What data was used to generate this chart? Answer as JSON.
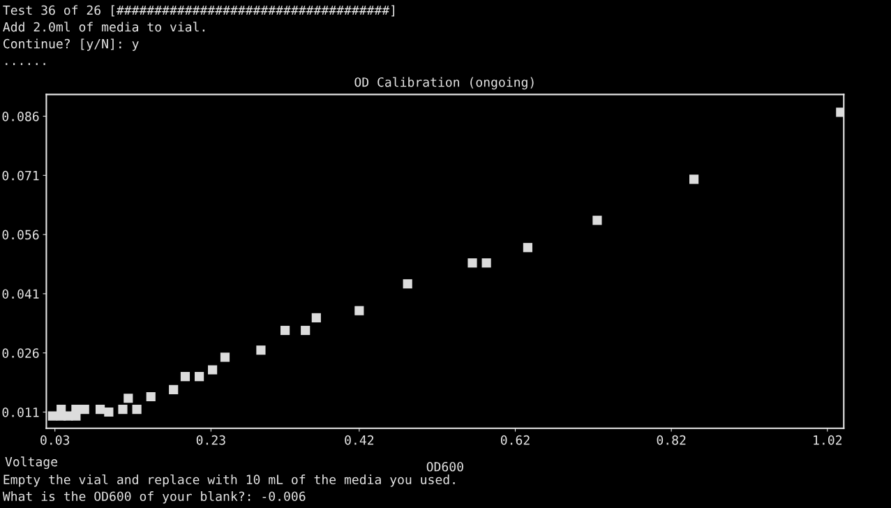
{
  "chart_data": {
    "type": "scatter",
    "title": "OD Calibration (ongoing)",
    "xlabel": "OD600",
    "ylabel": "Voltage",
    "annotations": [
      "Test 36 of 26 [####################################]",
      "Add 2.0ml of media to vial.",
      "Continue? [y/N]: y",
      "......",
      "Empty the vial and replace with 10 mL of the media you used.",
      "What is the OD600 of your blank?: -0.006"
    ],
    "series": [
      {
        "color": "#dcdcdc",
        "x": [
          0.027,
          0.038,
          0.038,
          0.047,
          0.057,
          0.057,
          0.068,
          0.088,
          0.099,
          0.117,
          0.124,
          0.135,
          0.153,
          0.182,
          0.197,
          0.215,
          0.232,
          0.248,
          0.294,
          0.325,
          0.351,
          0.365,
          0.42,
          0.482,
          0.565,
          0.583,
          0.636,
          0.725,
          0.849,
          1.037
        ],
        "values": [
          0.01,
          0.0117,
          0.01,
          0.01,
          0.0117,
          0.01,
          0.0117,
          0.0117,
          0.011,
          0.0117,
          0.0145,
          0.0117,
          0.0149,
          0.0167,
          0.02,
          0.02,
          0.0217,
          0.0249,
          0.0267,
          0.0317,
          0.0317,
          0.0349,
          0.0367,
          0.0435,
          0.0488,
          0.0488,
          0.0527,
          0.0596,
          0.07,
          0.087
        ]
      }
    ],
    "xlim": [
      0.019,
      1.041
    ],
    "ylim": [
      0.0069,
      0.0915
    ],
    "xticks": [
      {
        "value": 0.03,
        "label": "0.03"
      },
      {
        "value": 0.23,
        "label": "0.23"
      },
      {
        "value": 0.42,
        "label": "0.42"
      },
      {
        "value": 0.62,
        "label": "0.62"
      },
      {
        "value": 0.82,
        "label": "0.82"
      },
      {
        "value": 1.02,
        "label": "1.02"
      }
    ],
    "yticks": [
      0.011,
      0.026,
      0.041,
      0.056,
      0.071,
      0.086
    ],
    "marker": "square",
    "grid": false,
    "legend": false
  }
}
